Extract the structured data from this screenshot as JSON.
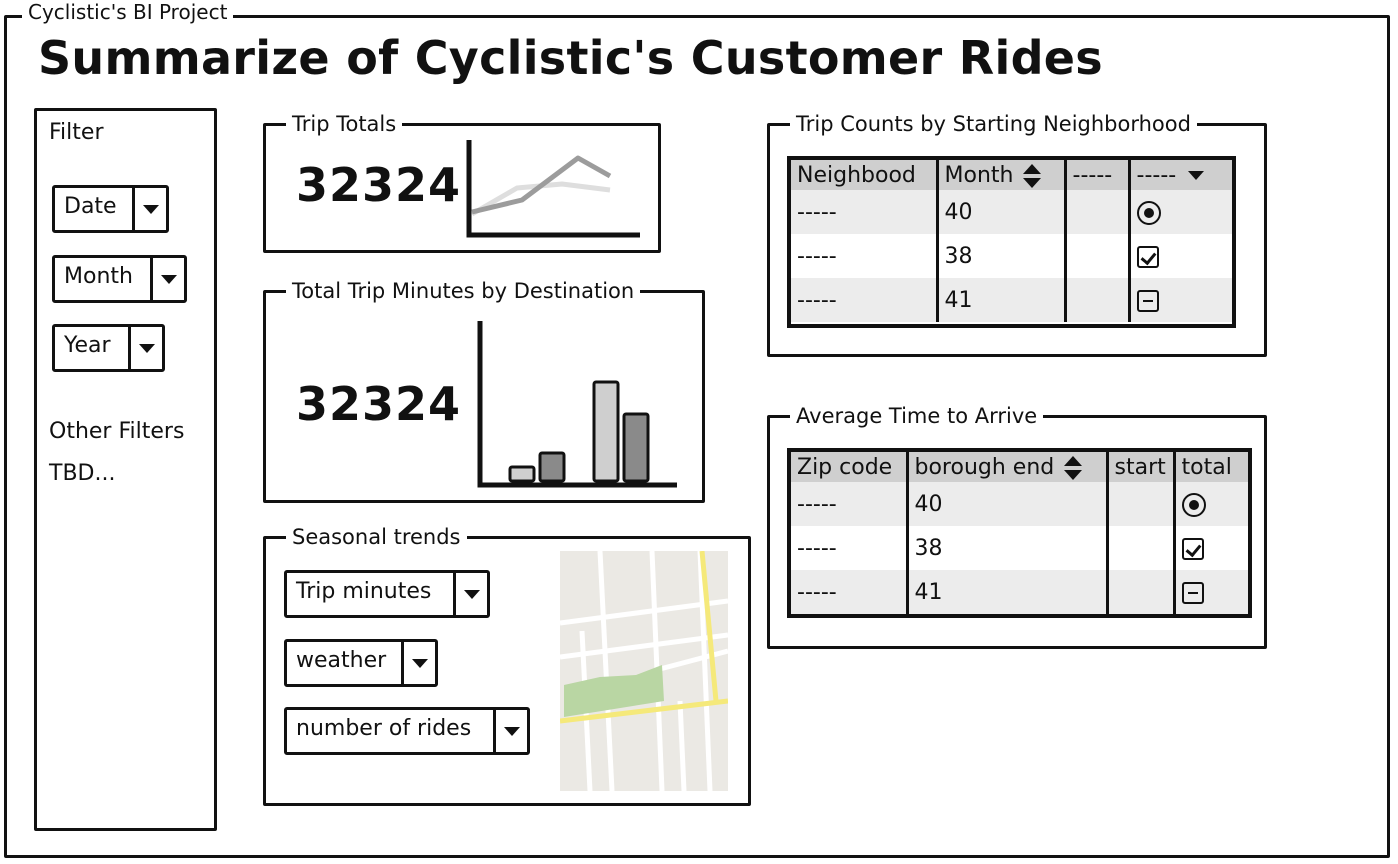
{
  "window": {
    "frame_label": "Cyclistic's BI Project",
    "title": "Summarize of Cyclistic's Customer Rides"
  },
  "sidebar": {
    "title": "Filter",
    "dropdowns": [
      "Date",
      "Month",
      "Year"
    ],
    "other_filters": "Other Filters",
    "tbd": "TBD..."
  },
  "trip_totals": {
    "label": "Trip Totals",
    "value": "32324"
  },
  "trip_minutes": {
    "label": "Total Trip Minutes by Destination",
    "value": "32324"
  },
  "seasonal": {
    "label": "Seasonal trends",
    "dropdowns": [
      "Trip minutes",
      "weather",
      "number of rides"
    ]
  },
  "neighborhood_table": {
    "label": "Trip Counts by Starting Neighborhood",
    "headers": [
      "Neighbood",
      "Month",
      "-----",
      "-----"
    ],
    "rows": [
      {
        "name": "-----",
        "value": "40",
        "icon": "radio-icon"
      },
      {
        "name": "-----",
        "value": "38",
        "icon": "checkbox-icon"
      },
      {
        "name": "-----",
        "value": "41",
        "icon": "minus-checkbox-icon"
      }
    ]
  },
  "arrive_table": {
    "label": "Average Time to Arrive",
    "headers": [
      "Zip code",
      "borough end",
      "start",
      "total"
    ],
    "rows": [
      {
        "name": "-----",
        "value": "40",
        "icon": "radio-icon"
      },
      {
        "name": "-----",
        "value": "38",
        "icon": "checkbox-icon"
      },
      {
        "name": "-----",
        "value": "41",
        "icon": "minus-checkbox-icon"
      }
    ]
  },
  "colors": {
    "line_dark": "#999999",
    "line_light": "#dddddd",
    "bar_light": "#cfcfcf",
    "bar_dark": "#8a8a8a",
    "map_bg": "#ebe9e4",
    "map_park": "#b9d6a3",
    "map_road_main": "#f5e97a"
  }
}
